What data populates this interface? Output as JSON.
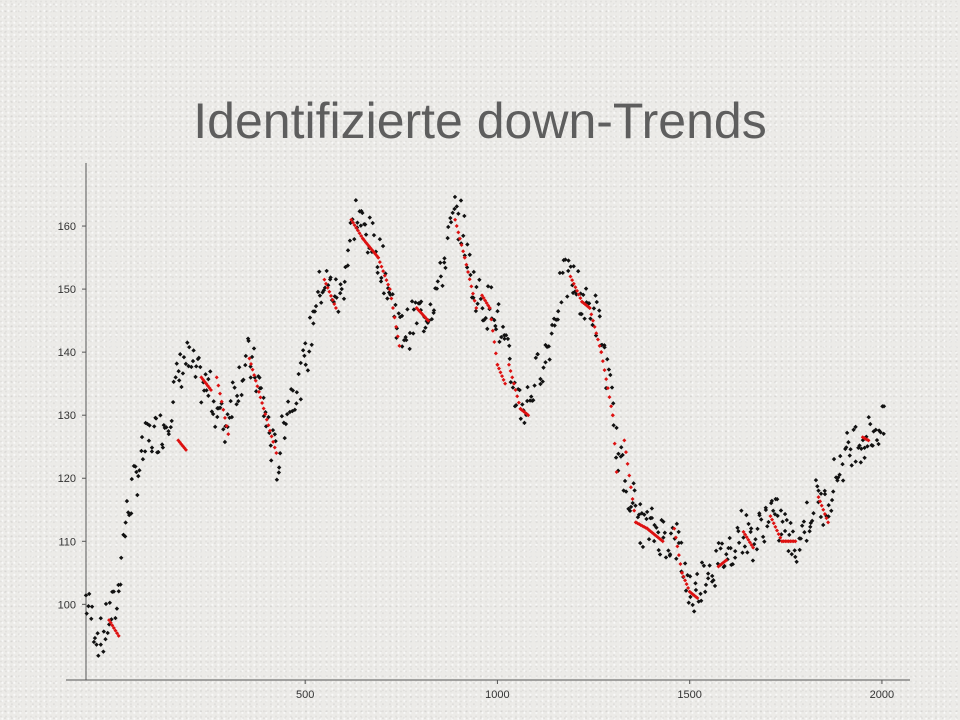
{
  "slide": {
    "title": "Identifizierte down-Trends"
  },
  "colors": {
    "points": "#111111",
    "trend": "#dd1111",
    "axis": "#555555"
  },
  "chart_data": {
    "type": "scatter",
    "title": "Identifizierte down-Trends",
    "xlabel": "",
    "ylabel": "",
    "xlim": [
      -70,
      2060
    ],
    "ylim": [
      88,
      170
    ],
    "xticks": [
      500,
      1000,
      1500,
      2000
    ],
    "yticks": [
      100,
      110,
      120,
      130,
      140,
      150,
      160
    ],
    "grid": false,
    "series": [
      {
        "role": "price",
        "points": [
          [
            -70,
            101
          ],
          [
            -50,
            97
          ],
          [
            -30,
            94
          ],
          [
            -10,
            98
          ],
          [
            10,
            100
          ],
          [
            30,
            112
          ],
          [
            50,
            118
          ],
          [
            70,
            122
          ],
          [
            90,
            126
          ],
          [
            110,
            127
          ],
          [
            130,
            128
          ],
          [
            150,
            131
          ],
          [
            170,
            136
          ],
          [
            190,
            139
          ],
          [
            210,
            137
          ],
          [
            230,
            135
          ],
          [
            250,
            134
          ],
          [
            270,
            131
          ],
          [
            290,
            128
          ],
          [
            310,
            133
          ],
          [
            330,
            136
          ],
          [
            350,
            139
          ],
          [
            370,
            137
          ],
          [
            390,
            132
          ],
          [
            410,
            126
          ],
          [
            430,
            122
          ],
          [
            450,
            131
          ],
          [
            470,
            134
          ],
          [
            490,
            136
          ],
          [
            510,
            141
          ],
          [
            530,
            149
          ],
          [
            550,
            151
          ],
          [
            570,
            150
          ],
          [
            590,
            148
          ],
          [
            610,
            155
          ],
          [
            630,
            162
          ],
          [
            650,
            160
          ],
          [
            670,
            158
          ],
          [
            690,
            156
          ],
          [
            710,
            152
          ],
          [
            730,
            147
          ],
          [
            750,
            143
          ],
          [
            770,
            144
          ],
          [
            790,
            146
          ],
          [
            810,
            146
          ],
          [
            830,
            148
          ],
          [
            850,
            151
          ],
          [
            870,
            157
          ],
          [
            890,
            162
          ],
          [
            910,
            160
          ],
          [
            930,
            152
          ],
          [
            950,
            149
          ],
          [
            970,
            147
          ],
          [
            990,
            148
          ],
          [
            1010,
            143
          ],
          [
            1030,
            138
          ],
          [
            1050,
            133
          ],
          [
            1070,
            131
          ],
          [
            1090,
            134
          ],
          [
            1110,
            138
          ],
          [
            1130,
            140
          ],
          [
            1150,
            146
          ],
          [
            1170,
            151
          ],
          [
            1190,
            152
          ],
          [
            1210,
            150
          ],
          [
            1230,
            147
          ],
          [
            1250,
            147
          ],
          [
            1270,
            143
          ],
          [
            1290,
            135
          ],
          [
            1310,
            125
          ],
          [
            1330,
            120
          ],
          [
            1350,
            117
          ],
          [
            1370,
            113
          ],
          [
            1390,
            112
          ],
          [
            1410,
            112
          ],
          [
            1430,
            111
          ],
          [
            1450,
            110
          ],
          [
            1470,
            110
          ],
          [
            1490,
            104
          ],
          [
            1510,
            101
          ],
          [
            1530,
            104
          ],
          [
            1550,
            106
          ],
          [
            1570,
            106
          ],
          [
            1590,
            108
          ],
          [
            1610,
            109
          ],
          [
            1630,
            112
          ],
          [
            1650,
            111
          ],
          [
            1670,
            110
          ],
          [
            1690,
            113
          ],
          [
            1710,
            115
          ],
          [
            1730,
            113
          ],
          [
            1750,
            112
          ],
          [
            1770,
            109
          ],
          [
            1790,
            111
          ],
          [
            1810,
            114
          ],
          [
            1830,
            117
          ],
          [
            1850,
            115
          ],
          [
            1870,
            119
          ],
          [
            1890,
            122
          ],
          [
            1910,
            124
          ],
          [
            1930,
            126
          ],
          [
            1950,
            126
          ],
          [
            1970,
            127
          ],
          [
            1990,
            128
          ],
          [
            2010,
            128
          ]
        ]
      },
      {
        "role": "down-trend",
        "segments": [
          [
            [
              -10,
              97.5
            ],
            [
              15,
              95
            ]
          ],
          [
            [
              170,
              126
            ],
            [
              190,
              124.5
            ]
          ],
          [
            [
              230,
              136
            ],
            [
              255,
              134
            ]
          ],
          [
            [
              270,
              136
            ],
            [
              300,
              127
            ]
          ],
          [
            [
              355,
              139
            ],
            [
              425,
              124
            ]
          ],
          [
            [
              550,
              151.5
            ],
            [
              580,
              147
            ]
          ],
          [
            [
              620,
              161
            ],
            [
              650,
              158
            ],
            [
              690,
              155
            ],
            [
              720,
              150
            ],
            [
              745,
              141
            ]
          ],
          [
            [
              790,
              147
            ],
            [
              820,
              145
            ]
          ],
          [
            [
              890,
              161
            ],
            [
              915,
              155
            ],
            [
              945,
              147
            ]
          ],
          [
            [
              960,
              149
            ],
            [
              980,
              147
            ],
            [
              1000,
              138
            ],
            [
              1020,
              135
            ]
          ],
          [
            [
              1030,
              138
            ],
            [
              1060,
              131
            ],
            [
              1080,
              130
            ]
          ],
          [
            [
              1190,
              152
            ],
            [
              1220,
              148
            ],
            [
              1240,
              147
            ],
            [
              1270,
              140
            ],
            [
              1300,
              130
            ],
            [
              1310,
              121
            ]
          ],
          [
            [
              1330,
              126
            ],
            [
              1360,
              113
            ],
            [
              1390,
              112
            ],
            [
              1430,
              110
            ]
          ],
          [
            [
              1460,
              112
            ],
            [
              1480,
              105
            ],
            [
              1500,
              102
            ],
            [
              1520,
              101
            ]
          ],
          [
            [
              1575,
              106
            ],
            [
              1595,
              107
            ]
          ],
          [
            [
              1640,
              111.5
            ],
            [
              1665,
              109
            ]
          ],
          [
            [
              1710,
              114
            ],
            [
              1740,
              110
            ],
            [
              1775,
              110
            ]
          ],
          [
            [
              1835,
              117
            ],
            [
              1860,
              113
            ]
          ],
          [
            [
              1950,
              126.5
            ],
            [
              1965,
              126
            ]
          ]
        ]
      }
    ]
  }
}
